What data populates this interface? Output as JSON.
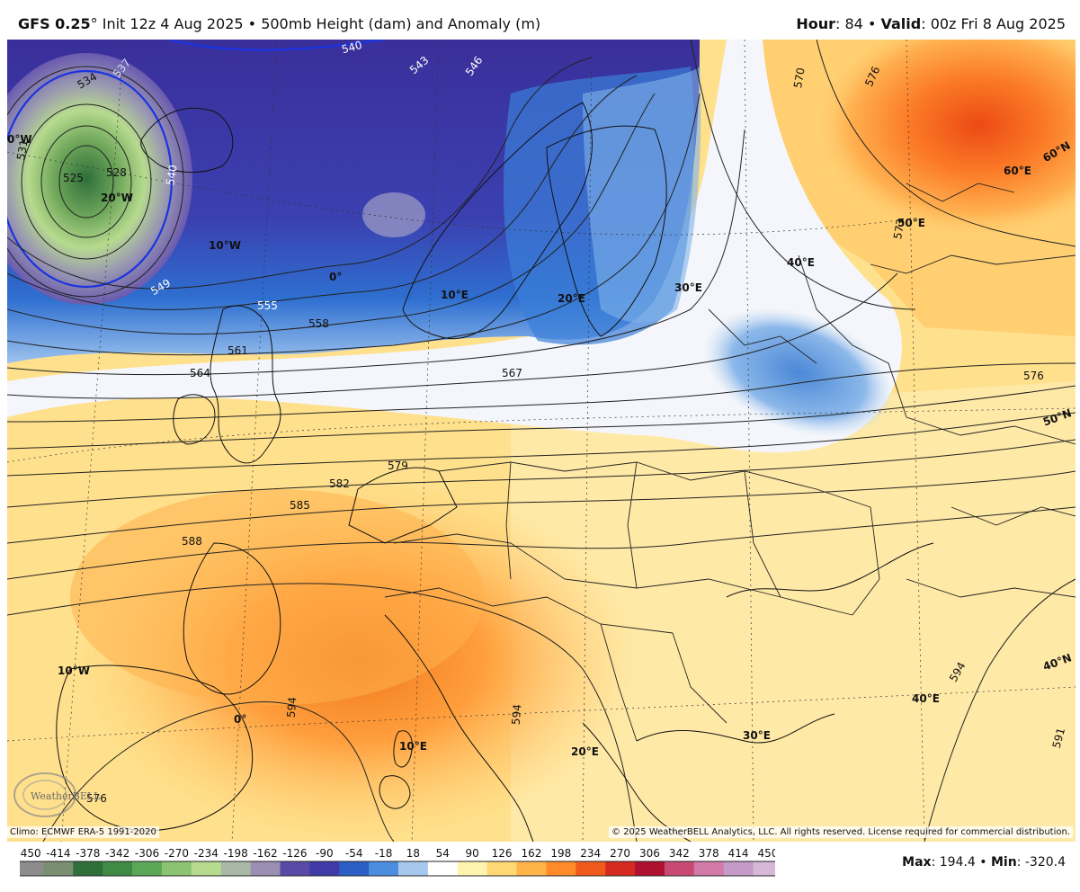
{
  "header": {
    "model": "GFS 0.25",
    "degree_mark": "°",
    "init": "Init 12z 4 Aug 2025",
    "separator": "•",
    "product": "500mb Height (dam) and Anomaly (m)",
    "hour_label": "Hour",
    "hour_value": ": 84",
    "valid_label": "Valid",
    "valid_value": ": 00z Fri 8 Aug 2025"
  },
  "map": {
    "contour_labels": [
      "525",
      "528",
      "531",
      "534",
      "537",
      "540",
      "540",
      "543",
      "546",
      "549",
      "555",
      "558",
      "561",
      "564",
      "567",
      "570",
      "573",
      "576",
      "576",
      "579",
      "582",
      "585",
      "588",
      "591",
      "594",
      "594",
      "594",
      "576"
    ],
    "lon_labels": [
      "0°W",
      "20°W",
      "10°W",
      "0°",
      "10°E",
      "20°E",
      "30°E",
      "40°E",
      "50°E",
      "60°E",
      "10°W",
      "0°",
      "10°E",
      "20°E",
      "30°E",
      "40°E"
    ],
    "lat_labels": [
      "60°N",
      "50°N",
      "40°N",
      "60°N"
    ],
    "logo_text": "WeatherBELL"
  },
  "credits": {
    "climo": "Climo: ECMWF ERA-5 1991-2020",
    "copyright": "© 2025 WeatherBELL Analytics, LLC. All rights reserved. License required for commercial distribution."
  },
  "legend": {
    "ticks": [
      "-450",
      "-414",
      "-378",
      "-342",
      "-306",
      "-270",
      "-234",
      "-198",
      "-162",
      "-126",
      "-90",
      "-54",
      "-18",
      "18",
      "54",
      "90",
      "126",
      "162",
      "198",
      "234",
      "270",
      "306",
      "342",
      "378",
      "414",
      "450"
    ],
    "colors": [
      "#8c8c8c",
      "#7a8f72",
      "#2f6f3a",
      "#3f8a45",
      "#5ba858",
      "#8cc373",
      "#b6da8e",
      "#aab8a8",
      "#9a8fb2",
      "#5a4aa8",
      "#3f3aa8",
      "#2b5fc6",
      "#4b8ee0",
      "#a6c8ee",
      "#ffffff",
      "#fff3b0",
      "#ffd873",
      "#ffb44a",
      "#ff8a2a",
      "#f05a1c",
      "#d42a20",
      "#b01030",
      "#c84a74",
      "#d27aa8",
      "#c59ac8",
      "#d8b8d8"
    ]
  },
  "stats": {
    "max_label": "Max",
    "max_value": ": 194.4",
    "sep": "•",
    "min_label": "Min",
    "min_value": ": -320.4"
  }
}
